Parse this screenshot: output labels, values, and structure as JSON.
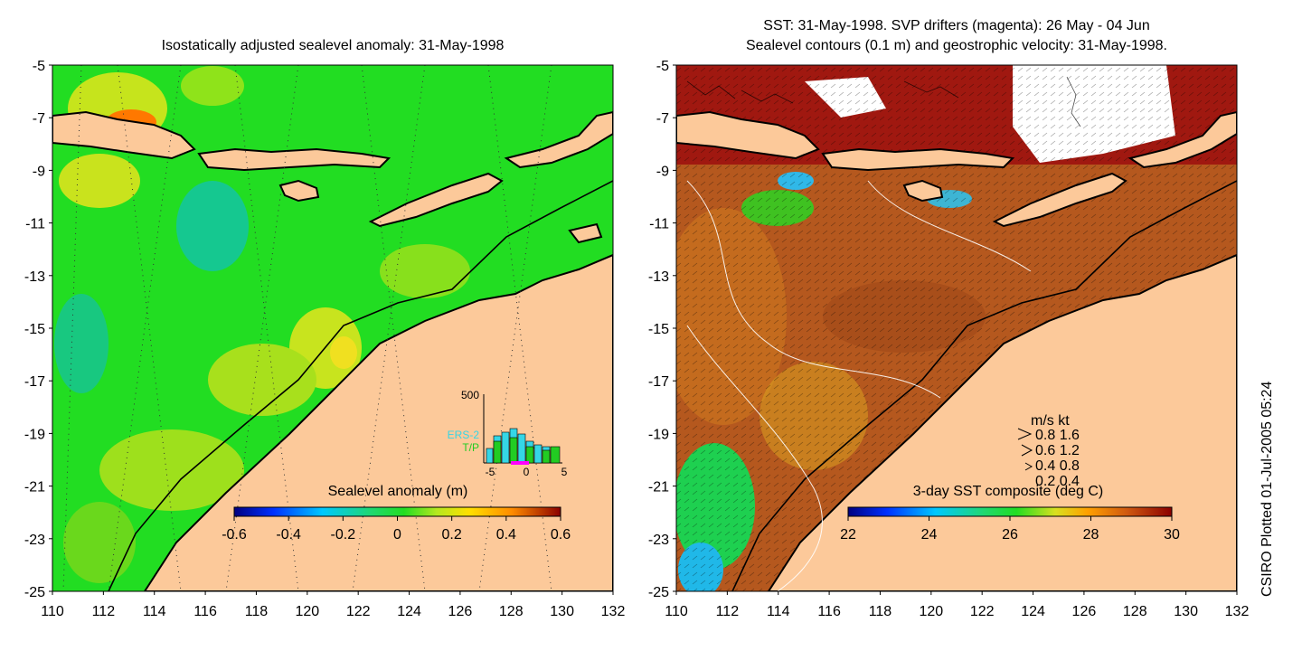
{
  "left_panel": {
    "title": "Isostatically adjusted sealevel anomaly: 31-May-1998",
    "colorbar_label": "Sealevel anomaly (m)",
    "colorbar_ticks": [
      "-0.6",
      "-0.4",
      "-0.2",
      "0",
      "0.2",
      "0.4",
      "0.6"
    ],
    "inset": {
      "ymax_label": "500",
      "series": [
        "ERS-2",
        "T/P"
      ],
      "series_colors": [
        "#35d6e6",
        "#22cc22"
      ],
      "x_ticks": [
        "-5",
        "0",
        "5"
      ]
    }
  },
  "right_panel": {
    "title_line1": "SST: 31-May-1998. SVP drifters (magenta): 26 May - 04 Jun",
    "title_line2": "Sealevel contours (0.1 m) and geostrophic velocity: 31-May-1998.",
    "colorbar_label": "3-day SST composite (deg C)",
    "colorbar_ticks": [
      "22",
      "24",
      "26",
      "28",
      "30"
    ],
    "velocity_legend": {
      "header": "m/s  kt",
      "rows": [
        "0.8  1.6",
        "0.6  1.2",
        "0.4  0.8",
        "0.2  0.4"
      ]
    }
  },
  "axes": {
    "y_ticks": [
      "-5",
      "-7",
      "-9",
      "-11",
      "-13",
      "-15",
      "-17",
      "-19",
      "-21",
      "-23",
      "-25"
    ],
    "x_ticks": [
      "110",
      "112",
      "114",
      "116",
      "118",
      "120",
      "122",
      "124",
      "126",
      "128",
      "130",
      "132"
    ]
  },
  "credit": "CSIRO Plotted 01-Jul-2005 05:24",
  "colors": {
    "land": "#fcc99a",
    "ocean_left": "#22dd22",
    "ocean_right": "#b5581e"
  }
}
